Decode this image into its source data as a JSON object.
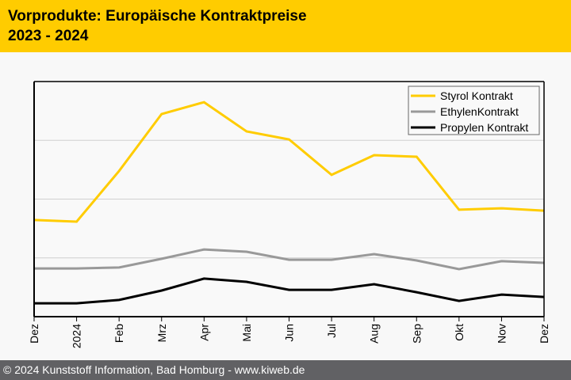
{
  "header": {
    "title_line1": "Vorprodukte: Europäische Kontraktpreise",
    "title_line2": "2023 - 2024",
    "background": "#ffcc00"
  },
  "footer": {
    "text": "© 2024 Kunststoff Information, Bad Homburg - www.kiweb.de"
  },
  "chart_data": {
    "type": "line",
    "title": "Vorprodukte: Europäische Kontraktpreise 2023 - 2024",
    "xlabel": "",
    "ylabel": "",
    "y_tick_labels_shown": false,
    "ylim": [
      0,
      100
    ],
    "y_gridlines": [
      25,
      50,
      75
    ],
    "grid": true,
    "legend_position": "top-right",
    "x": [
      "Dez",
      "2024",
      "Feb",
      "Mrz",
      "Apr",
      "Mai",
      "Jun",
      "Jul",
      "Aug",
      "Sep",
      "Okt",
      "Nov",
      "Dez"
    ],
    "series": [
      {
        "name": "Styrol Kontrakt",
        "color": "#ffcc00",
        "values": [
          41.1,
          40.4,
          62.0,
          86.2,
          91.2,
          78.8,
          75.4,
          60.3,
          68.7,
          68.0,
          45.5,
          46.1,
          45.1
        ]
      },
      {
        "name": "EthylenKontrakt",
        "color": "#999999",
        "values": [
          20.5,
          20.5,
          20.9,
          24.6,
          28.6,
          27.6,
          24.2,
          24.2,
          26.6,
          23.9,
          20.2,
          23.6,
          22.9
        ]
      },
      {
        "name": "Propylen Kontrakt",
        "color": "#000000",
        "values": [
          5.7,
          5.7,
          7.1,
          11.1,
          16.2,
          14.8,
          11.4,
          11.4,
          13.8,
          10.4,
          6.7,
          9.4,
          8.4
        ]
      }
    ]
  }
}
